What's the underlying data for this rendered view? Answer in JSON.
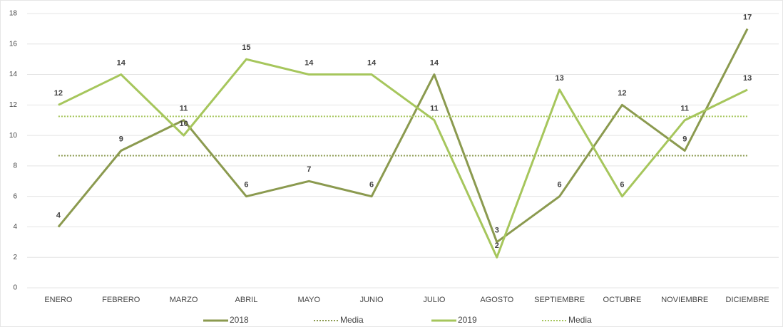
{
  "chart_data": {
    "type": "line",
    "categories": [
      "ENERO",
      "FEBRERO",
      "MARZO",
      "ABRIL",
      "MAYO",
      "JUNIO",
      "JULIO",
      "AGOSTO",
      "SEPTIEMBRE",
      "OCTUBRE",
      "NOVIEMBRE",
      "DICIEMBRE"
    ],
    "series": [
      {
        "name": "2018",
        "color": "#8b9a4f",
        "style": "solid",
        "labels": true,
        "values": [
          4,
          9,
          11,
          6,
          7,
          6,
          14,
          3,
          6,
          12,
          9,
          17
        ]
      },
      {
        "name": "Media",
        "color": "#8b9a4f",
        "style": "dotted",
        "labels": false,
        "values": [
          8.67,
          8.67,
          8.67,
          8.67,
          8.67,
          8.67,
          8.67,
          8.67,
          8.67,
          8.67,
          8.67,
          8.67
        ]
      },
      {
        "name": "2019",
        "color": "#a6c65c",
        "style": "solid",
        "labels": true,
        "values": [
          12,
          14,
          10,
          15,
          14,
          14,
          11,
          2,
          13,
          6,
          11,
          13
        ]
      },
      {
        "name": "Media",
        "color": "#a6c65c",
        "style": "dotted",
        "labels": false,
        "values": [
          11.25,
          11.25,
          11.25,
          11.25,
          11.25,
          11.25,
          11.25,
          11.25,
          11.25,
          11.25,
          11.25,
          11.25
        ]
      }
    ],
    "ylim": [
      0,
      18
    ],
    "yticks": [
      0,
      2,
      4,
      6,
      8,
      10,
      12,
      14,
      16,
      18
    ],
    "grid": true,
    "legend": "bottom"
  }
}
